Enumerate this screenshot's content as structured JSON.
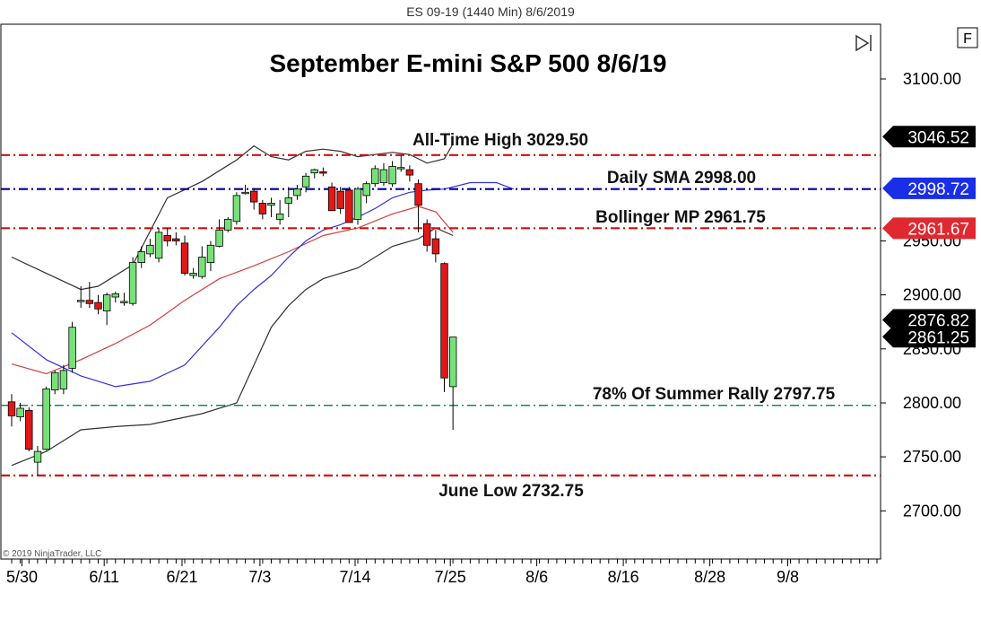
{
  "window": {
    "title": "ES 09-19 (1440 Min)  8/6/2019"
  },
  "toolbar": {
    "f_button_label": "F"
  },
  "copyright": "© 2019 NinjaTrader, LLC",
  "colors": {
    "up_candle": "#78e078",
    "down_candle": "#e01818",
    "level_red": "#d01010",
    "sma_blue": "#0000a0",
    "fib_green": "#208060",
    "bb_outer": "#303030",
    "bb_middle": "#d04040",
    "sma_line": "#3030e0",
    "marker_black": "#000000",
    "marker_blue": "#1a2ee8",
    "marker_red": "#e02830"
  },
  "chart_data": {
    "type": "candlestick",
    "title": "September E-mini S&P 500 8/6/19",
    "ylim": [
      2650,
      3140
    ],
    "y_ticks": [
      "3100.00",
      "2950.00",
      "2900.00",
      "2850.00",
      "2800.00",
      "2750.00",
      "2700.00"
    ],
    "x_ticks": [
      "5/30",
      "6/11",
      "6/21",
      "7/3",
      "7/14",
      "7/25",
      "8/6",
      "8/16",
      "8/28",
      "9/8"
    ],
    "candles": [
      [
        2801,
        2808,
        2778,
        2788
      ],
      [
        2787,
        2800,
        2783,
        2795
      ],
      [
        2793,
        2796,
        2755,
        2757
      ],
      [
        2745,
        2760,
        2733,
        2755
      ],
      [
        2757,
        2815,
        2756,
        2813
      ],
      [
        2812,
        2830,
        2808,
        2828
      ],
      [
        2813,
        2835,
        2808,
        2830
      ],
      [
        2832,
        2875,
        2828,
        2870
      ],
      [
        2894,
        2908,
        2888,
        2895
      ],
      [
        2895,
        2912,
        2888,
        2892
      ],
      [
        2893,
        2900,
        2882,
        2887
      ],
      [
        2885,
        2902,
        2872,
        2900
      ],
      [
        2898,
        2903,
        2893,
        2901
      ],
      [
        2894,
        2902,
        2890,
        2894
      ],
      [
        2892,
        2935,
        2890,
        2930
      ],
      [
        2930,
        2945,
        2925,
        2940
      ],
      [
        2938,
        2952,
        2935,
        2946
      ],
      [
        2934,
        2962,
        2930,
        2958
      ],
      [
        2955,
        2962,
        2945,
        2950
      ],
      [
        2952,
        2958,
        2946,
        2950
      ],
      [
        2948,
        2955,
        2918,
        2920
      ],
      [
        2918,
        2925,
        2915,
        2920
      ],
      [
        2917,
        2945,
        2915,
        2935
      ],
      [
        2930,
        2950,
        2922,
        2946
      ],
      [
        2945,
        2970,
        2944,
        2960
      ],
      [
        2960,
        2972,
        2958,
        2970
      ],
      [
        2968,
        2995,
        2965,
        2992
      ],
      [
        2994,
        3002,
        2993,
        2995
      ],
      [
        2996,
        2999,
        2979,
        2986
      ],
      [
        2985,
        2988,
        2970,
        2975
      ],
      [
        2983,
        2990,
        2972,
        2985
      ],
      [
        2970,
        2988,
        2965,
        2975
      ],
      [
        2985,
        3000,
        2972,
        2990
      ],
      [
        2992,
        3002,
        2988,
        2998
      ],
      [
        3000,
        3013,
        2995,
        3010
      ],
      [
        3013,
        3017,
        3008,
        3016
      ],
      [
        3014,
        3018,
        3010,
        3013
      ],
      [
        3000,
        3004,
        2978,
        2978
      ],
      [
        2996,
        3000,
        2975,
        2980
      ],
      [
        2997,
        3000,
        2967,
        2967
      ],
      [
        2970,
        3000,
        2965,
        2998
      ],
      [
        2992,
        3005,
        2985,
        3003
      ],
      [
        3003,
        3020,
        3000,
        3017
      ],
      [
        3004,
        3022,
        3001,
        3016
      ],
      [
        3003,
        3024,
        3000,
        3019
      ],
      [
        3018,
        3029,
        3014,
        3018
      ],
      [
        3016,
        3020,
        3005,
        3011
      ],
      [
        3003,
        3007,
        2958,
        2983
      ],
      [
        2966,
        2970,
        2940,
        2946
      ],
      [
        2952,
        2960,
        2930,
        2938
      ],
      [
        2929,
        2930,
        2810,
        2823
      ],
      [
        2815,
        2861,
        2775,
        2861
      ]
    ],
    "levels": [
      {
        "name": "All-Time High",
        "label": "All-Time High 3029.50",
        "value": 3029.5,
        "style": "red"
      },
      {
        "name": "Daily SMA",
        "label": "Daily SMA 2998.00",
        "value": 2998.0,
        "style": "blue"
      },
      {
        "name": "Bollinger MP",
        "label": "Bollinger MP 2961.75",
        "value": 2961.75,
        "style": "red"
      },
      {
        "name": "78% Of Summer Rally",
        "label": "78% Of Summer Rally 2797.75",
        "value": 2797.75,
        "style": "green"
      },
      {
        "name": "June Low",
        "label": "June Low 2732.75",
        "value": 2732.75,
        "style": "red"
      }
    ],
    "price_markers": [
      {
        "label": "3046.52",
        "value": 3046.52,
        "color": "black"
      },
      {
        "label": "2998.72",
        "value": 2998.72,
        "color": "blue"
      },
      {
        "label": "2961.67",
        "value": 2961.67,
        "color": "red"
      },
      {
        "label": "2876.82",
        "value": 2876.82,
        "color": "black"
      },
      {
        "label": "2861.25",
        "value": 2861.25,
        "color": "black"
      }
    ],
    "bollinger_upper": [
      [
        0,
        2935
      ],
      [
        4,
        2920
      ],
      [
        8,
        2905
      ],
      [
        10,
        2908
      ],
      [
        14,
        2928
      ],
      [
        18,
        2990
      ],
      [
        22,
        3005
      ],
      [
        26,
        3025
      ],
      [
        28,
        3038
      ],
      [
        30,
        3028
      ],
      [
        32,
        3025
      ],
      [
        34,
        3033
      ],
      [
        36,
        3035
      ],
      [
        38,
        3033
      ],
      [
        40,
        3028
      ],
      [
        42,
        3030
      ],
      [
        44,
        3032
      ],
      [
        46,
        3030
      ],
      [
        48,
        3022
      ],
      [
        50,
        3026
      ],
      [
        51,
        3040
      ]
    ],
    "bollinger_mid": [
      [
        0,
        2836
      ],
      [
        4,
        2827
      ],
      [
        8,
        2840
      ],
      [
        12,
        2855
      ],
      [
        16,
        2872
      ],
      [
        20,
        2895
      ],
      [
        24,
        2915
      ],
      [
        28,
        2927
      ],
      [
        32,
        2940
      ],
      [
        36,
        2955
      ],
      [
        40,
        2962
      ],
      [
        44,
        2975
      ],
      [
        47,
        2982
      ],
      [
        49,
        2977
      ],
      [
        51,
        2958
      ]
    ],
    "bollinger_lower": [
      [
        0,
        2742
      ],
      [
        4,
        2755
      ],
      [
        8,
        2775
      ],
      [
        12,
        2778
      ],
      [
        16,
        2780
      ],
      [
        22,
        2790
      ],
      [
        26,
        2800
      ],
      [
        30,
        2870
      ],
      [
        32,
        2890
      ],
      [
        34,
        2905
      ],
      [
        36,
        2915
      ],
      [
        40,
        2925
      ],
      [
        44,
        2945
      ],
      [
        47,
        2952
      ],
      [
        49,
        2962
      ],
      [
        51,
        2955
      ]
    ],
    "sma_line": [
      [
        0,
        2865
      ],
      [
        4,
        2840
      ],
      [
        8,
        2825
      ],
      [
        12,
        2815
      ],
      [
        16,
        2820
      ],
      [
        20,
        2835
      ],
      [
        24,
        2870
      ],
      [
        26,
        2890
      ],
      [
        28,
        2905
      ],
      [
        30,
        2918
      ],
      [
        32,
        2935
      ],
      [
        34,
        2950
      ],
      [
        36,
        2960
      ],
      [
        38,
        2965
      ],
      [
        40,
        2972
      ],
      [
        42,
        2980
      ],
      [
        44,
        2990
      ],
      [
        46,
        2995
      ],
      [
        48,
        2997
      ],
      [
        50,
        2998
      ],
      [
        53,
        3004
      ],
      [
        56,
        3004
      ],
      [
        58,
        2998
      ]
    ]
  }
}
